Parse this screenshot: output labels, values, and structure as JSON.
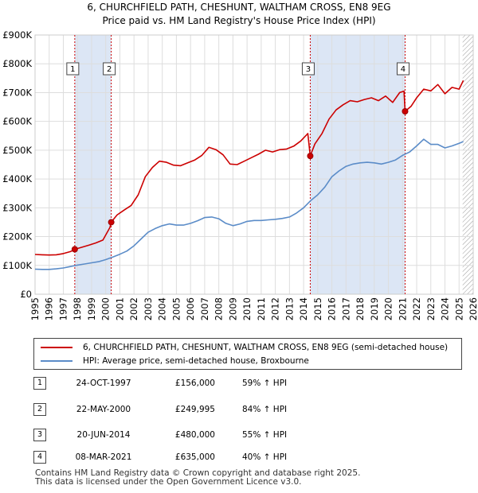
{
  "chart_data": {
    "type": "line",
    "title": "6, CHURCHFIELD PATH, CHESHUNT, WALTHAM CROSS, EN8 9EG",
    "subtitle": "Price paid vs. HM Land Registry's House Price Index (HPI)",
    "xlabel": "",
    "ylabel": "",
    "xlim": [
      1995,
      2026
    ],
    "ylim": [
      0,
      900000
    ],
    "y_ticks": [
      0,
      100000,
      200000,
      300000,
      400000,
      500000,
      600000,
      700000,
      800000,
      900000
    ],
    "y_tick_labels": [
      "£0",
      "£100K",
      "£200K",
      "£300K",
      "£400K",
      "£500K",
      "£600K",
      "£700K",
      "£800K",
      "£900K"
    ],
    "x_ticks": [
      1995,
      1996,
      1997,
      1998,
      1999,
      2000,
      2001,
      2002,
      2003,
      2004,
      2005,
      2006,
      2007,
      2008,
      2009,
      2010,
      2011,
      2012,
      2013,
      2014,
      2015,
      2016,
      2017,
      2018,
      2019,
      2020,
      2021,
      2022,
      2023,
      2024,
      2025,
      2026
    ],
    "x_tick_labels": [
      "1995",
      "1996",
      "1997",
      "1998",
      "1999",
      "2000",
      "2001",
      "2002",
      "2003",
      "2004",
      "2005",
      "2006",
      "2007",
      "2008",
      "2009",
      "2010",
      "2011",
      "2012",
      "2013",
      "2014",
      "2015",
      "2016",
      "2017",
      "2018",
      "2019",
      "2020",
      "2021",
      "2022",
      "2023",
      "2024",
      "2025",
      "2026"
    ],
    "grid": true,
    "shaded_periods": [
      [
        1997.81,
        2000.39
      ],
      [
        2014.47,
        2021.18
      ]
    ],
    "hatched_from": 2025.25,
    "series": [
      {
        "name": "6, CHURCHFIELD PATH, CHESHUNT, WALTHAM CROSS, EN8 9EG (semi-detached house)",
        "color": "#cc0000",
        "x": [
          1995,
          1995.5,
          1996,
          1996.5,
          1997,
          1997.5,
          1997.81,
          1998.3,
          1998.8,
          1999.3,
          1999.8,
          2000.3,
          2000.39,
          2000.8,
          2001.3,
          2001.8,
          2002.3,
          2002.8,
          2003.3,
          2003.8,
          2004.3,
          2004.8,
          2005.3,
          2005.8,
          2006.3,
          2006.8,
          2007.3,
          2007.8,
          2008.3,
          2008.8,
          2009.3,
          2009.8,
          2010.3,
          2010.8,
          2011.3,
          2011.8,
          2012.3,
          2012.8,
          2013.3,
          2013.8,
          2014.3,
          2014.47,
          2014.8,
          2015.3,
          2015.8,
          2016.3,
          2016.8,
          2017.3,
          2017.8,
          2018.3,
          2018.8,
          2019.3,
          2019.8,
          2020.3,
          2020.8,
          2021.1,
          2021.18,
          2021.6,
          2022.0,
          2022.5,
          2023.0,
          2023.5,
          2024.0,
          2024.5,
          2025.0,
          2025.3
        ],
        "values": [
          138000,
          137000,
          136000,
          137000,
          141000,
          148000,
          156000,
          163000,
          170000,
          178000,
          188000,
          232000,
          249995,
          275000,
          292000,
          308000,
          345000,
          408000,
          440000,
          462000,
          458000,
          448000,
          446000,
          456000,
          466000,
          482000,
          510000,
          502000,
          484000,
          452000,
          450000,
          462000,
          474000,
          486000,
          500000,
          494000,
          502000,
          504000,
          514000,
          532000,
          558000,
          480000,
          522000,
          558000,
          608000,
          640000,
          658000,
          672000,
          668000,
          676000,
          682000,
          672000,
          688000,
          666000,
          700000,
          705000,
          635000,
          652000,
          682000,
          712000,
          706000,
          728000,
          696000,
          718000,
          712000,
          742000
        ]
      },
      {
        "name": "HPI: Average price, semi-detached house, Broxbourne",
        "color": "#5b8cc8",
        "x": [
          1995,
          1995.5,
          1996,
          1996.5,
          1997,
          1997.5,
          1998,
          1998.5,
          1999,
          1999.5,
          2000,
          2000.5,
          2001,
          2001.5,
          2002,
          2002.5,
          2003,
          2003.5,
          2004,
          2004.5,
          2005,
          2005.5,
          2006,
          2006.5,
          2007,
          2007.5,
          2008,
          2008.5,
          2009,
          2009.5,
          2010,
          2010.5,
          2011,
          2011.5,
          2012,
          2012.5,
          2013,
          2013.5,
          2014,
          2014.5,
          2015,
          2015.5,
          2016,
          2016.5,
          2017,
          2017.5,
          2018,
          2018.5,
          2019,
          2019.5,
          2020,
          2020.5,
          2021,
          2021.5,
          2022,
          2022.5,
          2023,
          2023.5,
          2024,
          2024.5,
          2025,
          2025.3
        ],
        "values": [
          87000,
          86000,
          86000,
          88000,
          91000,
          96000,
          101000,
          105000,
          109000,
          113000,
          120000,
          129000,
          139000,
          150000,
          168000,
          192000,
          215000,
          228000,
          238000,
          244000,
          240000,
          240000,
          246000,
          255000,
          266000,
          268000,
          262000,
          246000,
          238000,
          244000,
          253000,
          256000,
          256000,
          258000,
          260000,
          263000,
          268000,
          282000,
          300000,
          325000,
          345000,
          372000,
          408000,
          428000,
          444000,
          452000,
          456000,
          458000,
          456000,
          452000,
          458000,
          466000,
          482000,
          494000,
          515000,
          538000,
          520000,
          520000,
          508000,
          515000,
          524000,
          530000
        ]
      }
    ],
    "sale_markers": [
      {
        "label": "1",
        "x": 1997.81,
        "value": 156000
      },
      {
        "label": "2",
        "x": 2000.39,
        "value": 249995
      },
      {
        "label": "3",
        "x": 2014.47,
        "value": 480000
      },
      {
        "label": "4",
        "x": 2021.18,
        "value": 635000
      }
    ]
  },
  "legend": {
    "property_label": "6, CHURCHFIELD PATH, CHESHUNT, WALTHAM CROSS, EN8 9EG (semi-detached house)",
    "hpi_label": "HPI: Average price, semi-detached house, Broxbourne",
    "property_color": "#cc0000",
    "hpi_color": "#5b8cc8"
  },
  "sales": [
    {
      "num": "1",
      "date": "24-OCT-1997",
      "price": "£156,000",
      "hpi": "59% ↑ HPI"
    },
    {
      "num": "2",
      "date": "22-MAY-2000",
      "price": "£249,995",
      "hpi": "84% ↑ HPI"
    },
    {
      "num": "3",
      "date": "20-JUN-2014",
      "price": "£480,000",
      "hpi": "55% ↑ HPI"
    },
    {
      "num": "4",
      "date": "08-MAR-2021",
      "price": "£635,000",
      "hpi": "40% ↑ HPI"
    }
  ],
  "footer": {
    "line1": "Contains HM Land Registry data © Crown copyright and database right 2025.",
    "line2": "This data is licensed under the Open Government Licence v3.0."
  }
}
